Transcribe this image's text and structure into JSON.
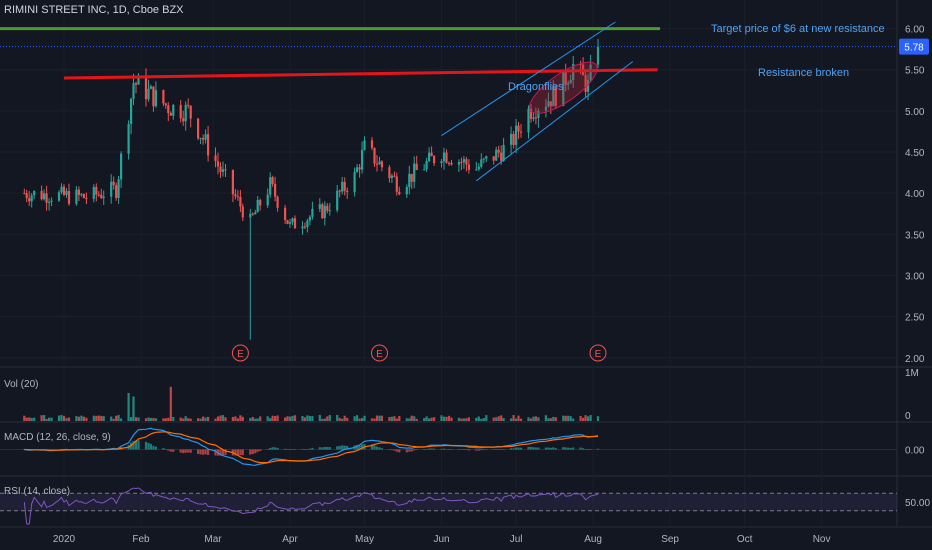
{
  "header": {
    "title": "RIMINI STREET INC, 1D, Cboe BZX"
  },
  "price_tag": {
    "value": "5.78",
    "color": "#2962ff"
  },
  "annotations": {
    "target": "Target price of $6 at new resistance",
    "resistance": "Resistance broken",
    "dragonflies": "Dragonflies"
  },
  "earnings_marker": "E",
  "panes": {
    "volume_label": "Vol (20)",
    "macd_label": "MACD (12, 26, close, 9)",
    "rsi_label": "RSI (14, close)"
  },
  "colors": {
    "background": "#131722",
    "up": "#26a69a",
    "down": "#ef5350",
    "target_line": "#4c9a2a",
    "resistance_line": "#e4151a",
    "channel": "#2196f3",
    "macd": "#2196f3",
    "signal": "#ff6d00",
    "rsi": "#7e57c2"
  },
  "chart_data": {
    "type": "candlestick",
    "title": "RIMINI STREET INC, 1D, Cboe BZX",
    "x_axis_labels": [
      "2020",
      "Feb",
      "Mar",
      "Apr",
      "May",
      "Jun",
      "Jul",
      "Aug",
      "Sep",
      "Oct",
      "Nov"
    ],
    "price_axis_ticks": [
      "6.00",
      "5.50",
      "5.00",
      "4.50",
      "4.00",
      "3.50",
      "3.00",
      "2.50",
      "2.00"
    ],
    "ylim": [
      1.9,
      6.25
    ],
    "last_price": 5.78,
    "price_path": [
      {
        "date": "2019-12-16",
        "close": 4.0
      },
      {
        "date": "2020-01-10",
        "close": 3.95
      },
      {
        "date": "2020-01-22",
        "close": 4.05
      },
      {
        "date": "2020-01-29",
        "close": 5.35
      },
      {
        "date": "2020-02-12",
        "close": 5.05
      },
      {
        "date": "2020-02-20",
        "close": 5.0
      },
      {
        "date": "2020-03-09",
        "close": 4.0
      },
      {
        "date": "2020-03-16",
        "close": 3.65
      },
      {
        "date": "2020-03-24",
        "close": 4.1
      },
      {
        "date": "2020-04-01",
        "close": 3.6
      },
      {
        "date": "2020-04-15",
        "close": 3.8
      },
      {
        "date": "2020-04-27",
        "close": 4.2
      },
      {
        "date": "2020-05-01",
        "close": 4.55
      },
      {
        "date": "2020-05-15",
        "close": 4.1
      },
      {
        "date": "2020-06-01",
        "close": 4.5
      },
      {
        "date": "2020-06-15",
        "close": 4.3
      },
      {
        "date": "2020-06-29",
        "close": 4.6
      },
      {
        "date": "2020-07-06",
        "close": 5.0
      },
      {
        "date": "2020-07-17",
        "close": 5.2
      },
      {
        "date": "2020-07-24",
        "close": 5.55
      },
      {
        "date": "2020-07-30",
        "close": 5.3
      },
      {
        "date": "2020-08-03",
        "close": 5.78
      }
    ],
    "notable_lows": [
      {
        "date": "2020-03-16",
        "low": 2.22
      }
    ],
    "target_level": 6.0,
    "resistance_line": {
      "start": {
        "date": "2020-01-01",
        "price": 5.4
      },
      "end": {
        "date": "2020-08-27",
        "price": 5.5
      }
    },
    "channel_lower": {
      "start": {
        "date": "2020-06-15",
        "price": 4.15
      },
      "end": {
        "date": "2020-08-17",
        "price": 5.6
      }
    },
    "channel_upper": {
      "start": {
        "date": "2020-06-01",
        "price": 4.7
      },
      "end": {
        "date": "2020-08-10",
        "price": 6.08
      }
    },
    "earnings_dates": [
      "2020-03-12",
      "2020-05-07",
      "2020-08-03"
    ],
    "volume": {
      "label": "Vol (20)",
      "ticks": [
        "1M",
        "0"
      ],
      "spikes": [
        {
          "date": "2020-01-27",
          "value": 0.55
        },
        {
          "date": "2020-01-29",
          "value": 0.48
        },
        {
          "date": "2020-02-13",
          "value": 0.67
        }
      ]
    },
    "macd": {
      "label": "MACD (12, 26, close, 9)",
      "ticks": [
        "0.00"
      ]
    },
    "rsi": {
      "label": "RSI (14, close)",
      "ticks": [
        "50.00"
      ]
    }
  }
}
